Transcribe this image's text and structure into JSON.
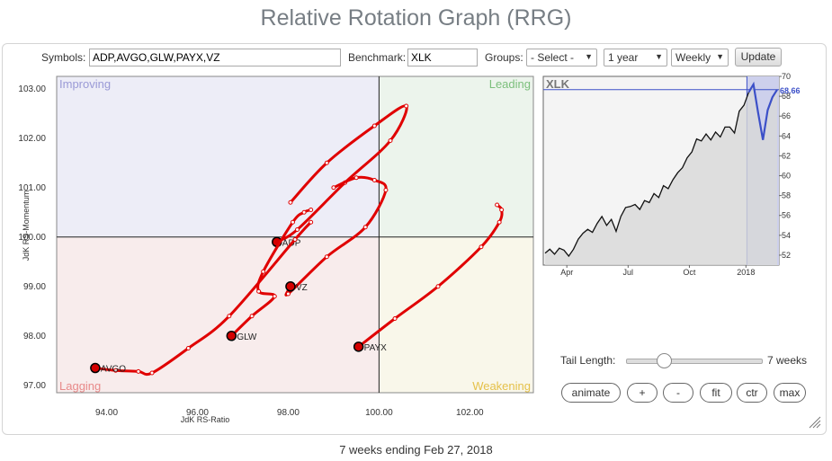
{
  "page_title": "Relative Rotation Graph (RRG)",
  "controls": {
    "symbols_label": "Symbols:",
    "symbols_value": "ADP,AVGO,GLW,PAYX,VZ",
    "benchmark_label": "Benchmark:",
    "benchmark_value": "XLK",
    "groups_label": "Groups:",
    "groups_selected": "- Select -",
    "period_selected": "1 year",
    "interval_selected": "Weekly",
    "update_label": "Update"
  },
  "tail": {
    "label": "Tail Length:",
    "value_text": "7 weeks",
    "weeks": 7,
    "max_weeks": 26
  },
  "buttons": {
    "animate": "animate",
    "plus": "+",
    "minus": "-",
    "fit": "fit",
    "ctr": "ctr",
    "max": "max"
  },
  "footer": "7 weeks ending Feb 27, 2018",
  "colors": {
    "tail": "#e00000",
    "improving": "#ededf7",
    "leading": "#ecf4ec",
    "lagging": "#f8ecec",
    "weakening": "#f9f7ea",
    "benchmark_line": "#3c50c8"
  },
  "chart_data": [
    {
      "type": "scatter",
      "title": "",
      "xlabel": "JdK RS-Ratio",
      "ylabel": "JdK RS-Momentum",
      "xlim": [
        92.9,
        103.4
      ],
      "ylim": [
        96.85,
        103.25
      ],
      "x_ticks": [
        "94.00",
        "96.00",
        "98.00",
        "100.00",
        "102.00"
      ],
      "y_ticks": [
        "97.00",
        "98.00",
        "99.00",
        "100.00",
        "101.00",
        "102.00",
        "103.00"
      ],
      "quadrants": {
        "top_left": "Improving",
        "top_right": "Leading",
        "bottom_left": "Lagging",
        "bottom_right": "Weakening"
      },
      "series": [
        {
          "name": "ADP",
          "x": [
            98.05,
            98.85,
            99.9,
            100.6,
            100.25,
            99.25,
            98.2,
            97.75
          ],
          "y": [
            100.7,
            101.5,
            102.25,
            102.65,
            101.95,
            101.1,
            100.15,
            99.9
          ]
        },
        {
          "name": "AVGO",
          "x": [
            98.5,
            98.15,
            96.7,
            95.8,
            95.0,
            94.7,
            94.2,
            93.75
          ],
          "y": [
            100.3,
            99.95,
            98.4,
            97.75,
            97.25,
            97.28,
            97.3,
            97.35
          ]
        },
        {
          "name": "GLW",
          "x": [
            98.5,
            98.35,
            98.1,
            97.45,
            97.35,
            97.7,
            97.2,
            96.75
          ],
          "y": [
            100.55,
            100.5,
            100.3,
            99.3,
            98.9,
            98.8,
            98.4,
            98.0
          ]
        },
        {
          "name": "PAYX",
          "x": [
            102.6,
            102.7,
            102.65,
            102.25,
            101.3,
            100.35,
            99.55
          ],
          "y": [
            100.65,
            100.55,
            100.3,
            99.8,
            99.0,
            98.35,
            97.78
          ]
        },
        {
          "name": "VZ",
          "x": [
            99.0,
            99.5,
            99.9,
            100.15,
            99.7,
            98.85,
            98.0,
            98.05
          ],
          "y": [
            101.0,
            101.2,
            101.15,
            100.95,
            100.2,
            99.6,
            98.85,
            99.0
          ]
        }
      ]
    },
    {
      "type": "line",
      "title": "XLK",
      "x_ticks": [
        "Apr",
        "Jul",
        "Oct",
        "2018"
      ],
      "y_ticks": [
        52,
        54,
        56,
        58,
        60,
        62,
        64,
        66,
        68,
        70
      ],
      "ylim": [
        51,
        70
      ],
      "last_value_label": "68.66",
      "values": [
        52.2,
        52.6,
        52.1,
        52.7,
        52.5,
        51.9,
        52.6,
        53.6,
        54.2,
        54.6,
        54.3,
        55.2,
        55.9,
        55.0,
        55.6,
        54.4,
        55.9,
        56.8,
        56.9,
        57.1,
        56.6,
        57.5,
        57.3,
        58.2,
        57.8,
        59.0,
        58.7,
        59.6,
        60.3,
        60.8,
        61.8,
        62.4,
        63.7,
        63.5,
        64.2,
        63.6,
        64.4,
        63.9,
        64.9,
        64.9,
        64.3,
        66.5,
        67.1,
        68.4,
        69.2,
        66.3,
        63.6,
        66.6,
        67.9,
        68.66
      ],
      "highlight_from_index": 43
    }
  ]
}
